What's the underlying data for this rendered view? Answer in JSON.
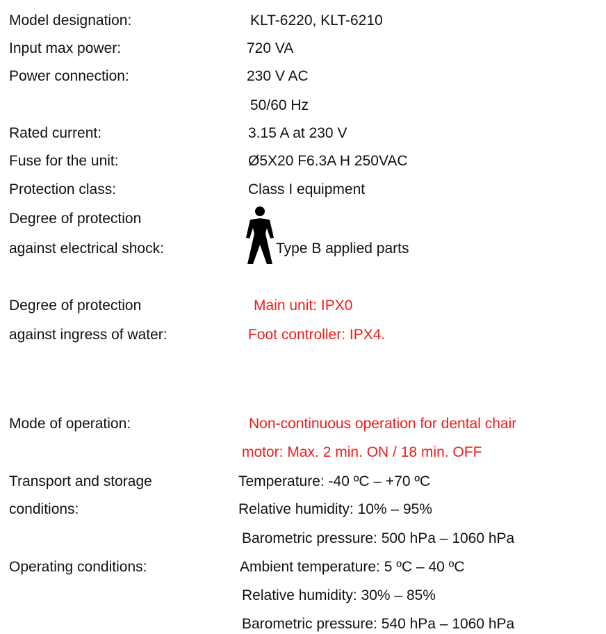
{
  "specs": [
    {
      "label": [
        "Model designation:"
      ],
      "value": [
        "KLT-6220, KLT-6210"
      ]
    },
    {
      "label": [
        "Input max power:"
      ],
      "value": [
        "720 VA"
      ]
    },
    {
      "label": [
        "Power connection:"
      ],
      "value": [
        "230 V AC",
        "50/60 Hz"
      ]
    },
    {
      "label": [
        "Rated current:"
      ],
      "value": [
        "3.15 A at 230 V"
      ]
    },
    {
      "label": [
        "Fuse for the unit:"
      ],
      "value": [
        "Ø5X20 F6.3A H 250VAC"
      ]
    },
    {
      "label": [
        "Protection class:"
      ],
      "value": [
        "Class I equipment"
      ]
    },
    {
      "label": [
        "Degree of protection",
        "against electrical shock:"
      ],
      "value": [
        "Type B applied parts"
      ]
    },
    {
      "label": [
        "Degree of protection",
        "against ingress of water:"
      ],
      "value": [
        "Main unit: IPX0",
        "Foot controller: IPX4."
      ]
    },
    {
      "label": [
        "Mode of operation:"
      ],
      "value": [
        "Non-continuous operation for dental chair",
        "motor: Max. 2 min. ON / 18 min. OFF"
      ]
    },
    {
      "label": [
        "Transport and storage",
        "conditions:"
      ],
      "value": [
        "Temperature: -40 ºC – +70 ºC",
        "Relative humidity: 10% – 95%",
        "Barometric pressure: 500 hPa – 1060 hPa"
      ]
    },
    {
      "label": [
        "Operating conditions:"
      ],
      "value": [
        "Ambient temperature: 5 ºC – 40 ºC",
        "Relative humidity: 30% – 85%",
        "Barometric pressure: 540 hPa – 1060 hPa"
      ]
    }
  ]
}
